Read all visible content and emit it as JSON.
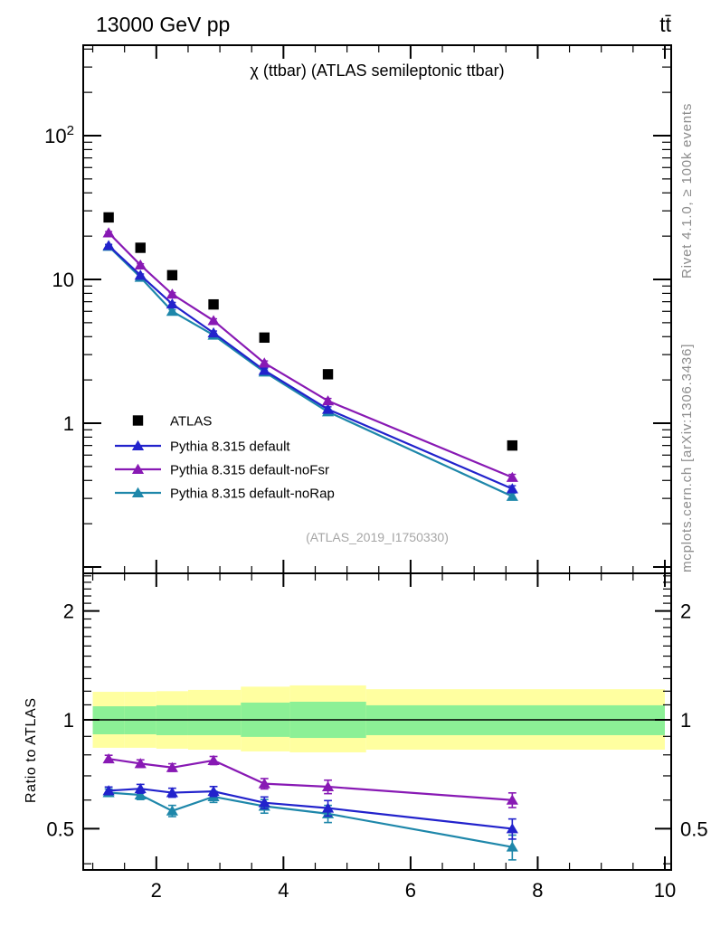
{
  "header": {
    "left": "13000 GeV pp",
    "right": "tt̄"
  },
  "side_notes": {
    "top": "Rivet 4.1.0, ≥ 100k events",
    "bottom": "mcplots.cern.ch [arXiv:1306.3436]"
  },
  "chart_data": {
    "type": "line",
    "title": "χ (ttbar) (ATLAS semileptonic ttbar)",
    "watermark": "(ATLAS_2019_I1750330)",
    "x_range": [
      0.85,
      10.1
    ],
    "x_label_ticks": [
      2,
      4,
      6,
      8,
      10
    ],
    "x_minor_step": 0.5,
    "x": [
      1.25,
      1.75,
      2.25,
      2.9,
      3.7,
      4.7,
      7.6
    ],
    "bin_edges": [
      1.0,
      1.5,
      2.0,
      2.5,
      3.33,
      4.1,
      5.3,
      10.0
    ],
    "main_panel": {
      "yscale": "log",
      "ylim": [
        0.09,
        430
      ],
      "labeled_ticks": [
        1,
        10,
        100
      ]
    },
    "ratio_panel": {
      "yscale": "log",
      "ylim": [
        0.385,
        2.55
      ],
      "labeled_ticks": [
        0.5,
        1,
        2
      ],
      "ylabel": "Ratio to ATLAS",
      "reference": 1
    },
    "series": [
      {
        "name": "ATLAS",
        "color": "#000000",
        "marker": "square",
        "line": false,
        "values": [
          27,
          16.6,
          10.7,
          6.7,
          3.94,
          2.19,
          0.7
        ]
      },
      {
        "name": "Pythia 8.315 default",
        "color": "#2222cc",
        "marker": "triangle",
        "line": true,
        "values": [
          17.2,
          10.7,
          6.75,
          4.25,
          2.33,
          1.25,
          0.35
        ],
        "err_frac": [
          0.02,
          0.02,
          0.025,
          0.03,
          0.035,
          0.04,
          0.05
        ],
        "ratio": [
          0.637,
          0.645,
          0.629,
          0.634,
          0.59,
          0.57,
          0.5
        ],
        "ratio_err": [
          0.015,
          0.018,
          0.018,
          0.02,
          0.022,
          0.028,
          0.032
        ]
      },
      {
        "name": "Pythia 8.315 default-noFsr",
        "color": "#8819b4",
        "marker": "triangle",
        "line": true,
        "values": [
          21.1,
          12.6,
          7.9,
          5.17,
          2.62,
          1.43,
          0.42
        ],
        "err_frac": [
          0.02,
          0.02,
          0.025,
          0.03,
          0.035,
          0.04,
          0.05
        ],
        "ratio": [
          0.78,
          0.757,
          0.738,
          0.772,
          0.666,
          0.653,
          0.6
        ],
        "ratio_err": [
          0.018,
          0.018,
          0.018,
          0.02,
          0.022,
          0.028,
          0.028
        ]
      },
      {
        "name": "Pythia 8.315 default-noRap",
        "color": "#1e87aa",
        "marker": "triangle",
        "line": true,
        "values": [
          17.0,
          10.35,
          6.0,
          4.1,
          2.27,
          1.2,
          0.31
        ],
        "err_frac": [
          0.02,
          0.02,
          0.025,
          0.03,
          0.035,
          0.04,
          0.05
        ],
        "ratio": [
          0.629,
          0.62,
          0.56,
          0.613,
          0.577,
          0.55,
          0.445
        ],
        "ratio_err": [
          0.015,
          0.018,
          0.02,
          0.022,
          0.025,
          0.03,
          0.035
        ]
      }
    ],
    "bands": {
      "yellow": {
        "color": "#ffffa0",
        "hi": [
          1.195,
          1.195,
          1.2,
          1.21,
          1.235,
          1.245,
          1.215
        ],
        "lo": [
          0.837,
          0.837,
          0.832,
          0.827,
          0.818,
          0.813,
          0.827
        ]
      },
      "green": {
        "color": "#8cf096",
        "hi": [
          1.09,
          1.09,
          1.097,
          1.097,
          1.116,
          1.122,
          1.097
        ],
        "lo": [
          0.912,
          0.912,
          0.907,
          0.907,
          0.897,
          0.891,
          0.907
        ]
      }
    },
    "legend": {
      "entries": [
        "ATLAS",
        "Pythia 8.315 default",
        "Pythia 8.315 default-noFsr",
        "Pythia 8.315 default-noRap"
      ]
    }
  }
}
